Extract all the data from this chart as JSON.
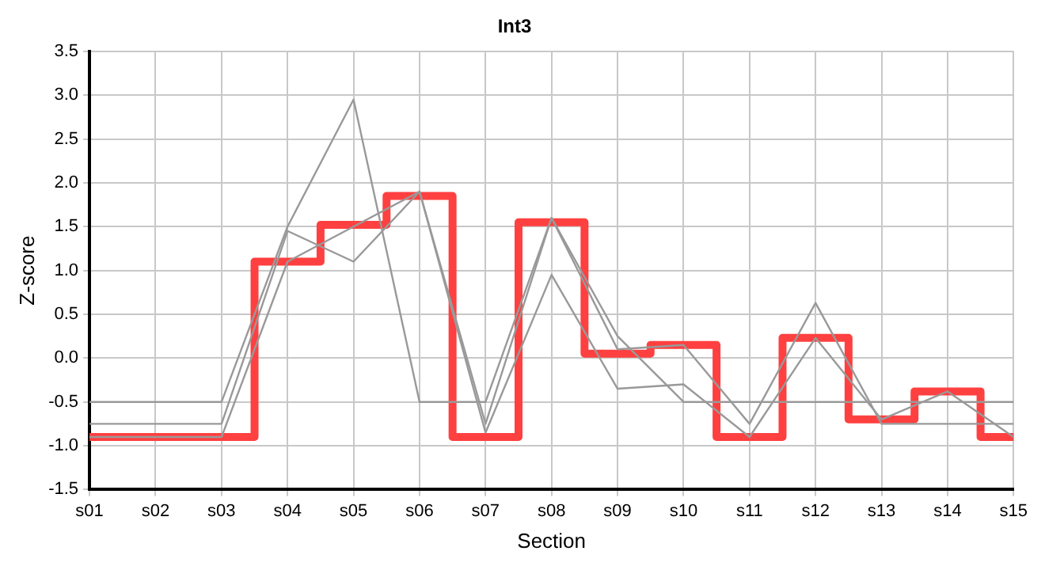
{
  "chart_data": {
    "type": "line",
    "title": "Int3",
    "xlabel": "Section",
    "ylabel": "Z-score",
    "categories": [
      "s01",
      "s02",
      "s03",
      "s04",
      "s05",
      "s06",
      "s07",
      "s08",
      "s09",
      "s10",
      "s11",
      "s12",
      "s13",
      "s14",
      "s15"
    ],
    "series": [
      {
        "type": "line",
        "color": "#999999",
        "values": [
          -0.5,
          -0.5,
          -0.5,
          1.5,
          2.95,
          -0.5,
          -0.5,
          1.6,
          0.25,
          -0.5,
          -0.5,
          -0.5,
          -0.5,
          -0.5,
          -0.5
        ]
      },
      {
        "type": "line",
        "color": "#999999",
        "values": [
          -0.75,
          -0.75,
          -0.75,
          1.45,
          1.1,
          1.9,
          -0.75,
          1.6,
          0.1,
          0.15,
          -0.75,
          0.63,
          -0.75,
          -0.75,
          -0.75
        ]
      },
      {
        "type": "line",
        "color": "#999999",
        "values": [
          -0.9,
          -0.9,
          -0.9,
          1.1,
          1.5,
          1.9,
          -0.85,
          0.95,
          -0.35,
          -0.3,
          -0.9,
          0.23,
          -0.7,
          -0.38,
          -0.9
        ]
      },
      {
        "type": "step",
        "color": "#ff4040",
        "values": [
          -0.9,
          -0.9,
          -0.9,
          1.1,
          1.52,
          1.85,
          -0.9,
          1.55,
          0.05,
          0.15,
          -0.9,
          0.23,
          -0.7,
          -0.38,
          -0.9
        ]
      }
    ],
    "ylim": [
      -1.5,
      3.5
    ],
    "yticks": [
      -1.5,
      {
        "value": -1,
        "label": "-1.0"
      },
      -0.5,
      {
        "value": 0,
        "label": "0.0"
      },
      0.5,
      {
        "value": 1,
        "label": "1.0"
      },
      1.5,
      {
        "value": 2,
        "label": "2.0"
      },
      2.5,
      {
        "value": 3,
        "label": "3.0"
      },
      3.5
    ],
    "grid": true,
    "legend": false,
    "marker": "none",
    "line_style": "solid"
  }
}
